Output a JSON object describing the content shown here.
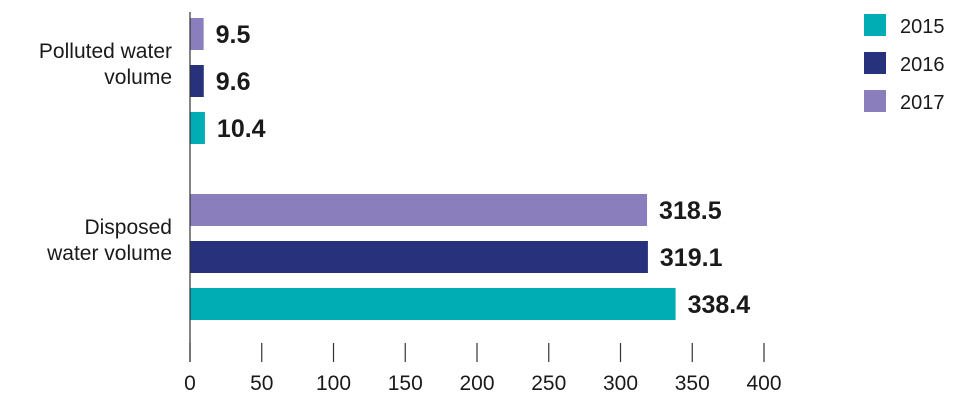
{
  "chart_data": {
    "type": "bar",
    "orientation": "horizontal",
    "categories": [
      "Polluted water\nvolume",
      "Disposed\nwater volume"
    ],
    "series": [
      {
        "name": "2017",
        "color": "#8a7fbc",
        "values": [
          9.5,
          318.5
        ],
        "labels": [
          "9.5",
          "318.5"
        ]
      },
      {
        "name": "2016",
        "color": "#27317c",
        "values": [
          9.6,
          319.1
        ],
        "labels": [
          "9.6",
          "319.1"
        ]
      },
      {
        "name": "2015",
        "color": "#00adb5",
        "values": [
          10.4,
          338.4
        ],
        "labels": [
          "10.4",
          "338.4"
        ]
      }
    ],
    "legend_order": [
      "2015",
      "2016",
      "2017"
    ],
    "legend_position": "top-right",
    "xlim": [
      0,
      400
    ],
    "x_ticks": [
      0,
      50,
      100,
      150,
      200,
      250,
      300,
      350,
      400
    ],
    "title": "",
    "xlabel": "",
    "ylabel": "",
    "grid": false
  }
}
